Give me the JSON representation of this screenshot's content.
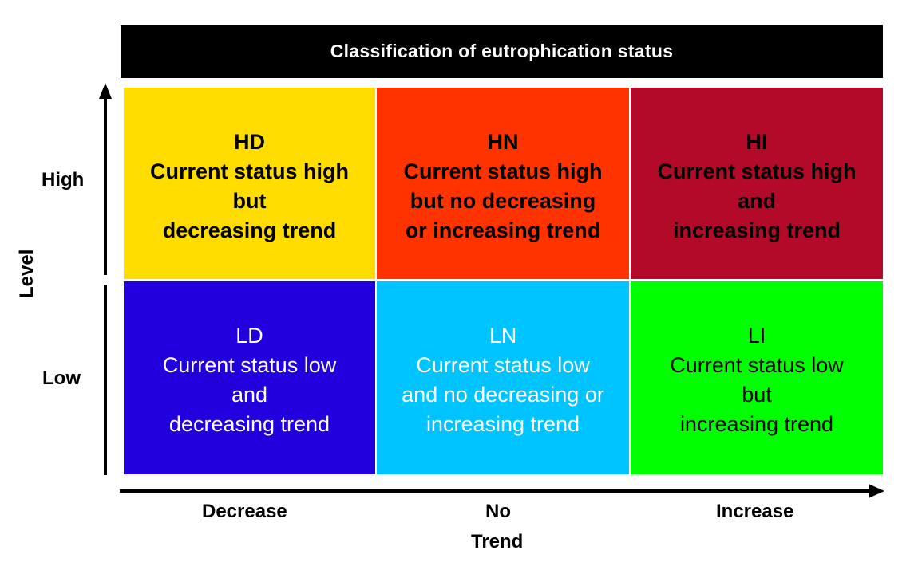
{
  "title": "Classification of eutrophication status",
  "y_axis": {
    "title": "Level",
    "labels": [
      "High",
      "Low"
    ]
  },
  "x_axis": {
    "title": "Trend",
    "labels": [
      "Decrease",
      "No",
      "Increase"
    ]
  },
  "cells": {
    "hd": {
      "code": "HD",
      "text": "Current status high\nbut\ndecreasing trend",
      "color": "#FFDD00",
      "text_color": "#000000"
    },
    "hn": {
      "code": "HN",
      "text": "Current status high\nbut no decreasing\nor increasing trend",
      "color": "#FF3300",
      "text_color": "#000000"
    },
    "hi": {
      "code": "HI",
      "text": "Current status high\nand\nincreasing trend",
      "color": "#B20A28",
      "text_color": "#000000"
    },
    "ld": {
      "code": "LD",
      "text": "Current status low\nand\ndecreasing trend",
      "color": "#2200DD",
      "text_color": "#FFFFFF"
    },
    "ln": {
      "code": "LN",
      "text": "Current status low\nand no decreasing or\nincreasing trend",
      "color": "#00C4FF",
      "text_color": "#FFFFFF"
    },
    "li": {
      "code": "LI",
      "text": "Current status low\nbut\nincreasing trend",
      "color": "#00FF00",
      "text_color": "#000000"
    }
  }
}
